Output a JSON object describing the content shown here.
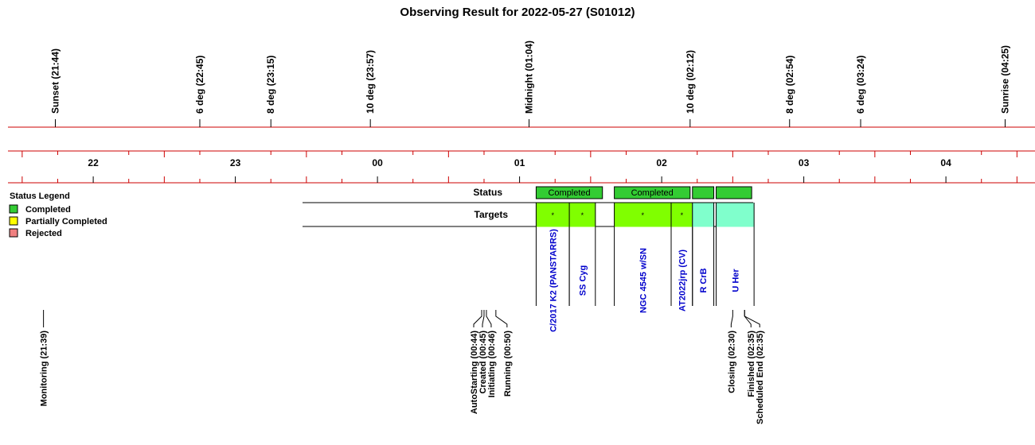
{
  "page_title": "Observing Result for 2022-05-27 (S01012)",
  "colors": {
    "axis_red": "#cc0000",
    "completed": "#33cc33",
    "partially_completed": "#ffff00",
    "rejected": "#f08080",
    "target_completed": "#80ff00",
    "target_other": "#80ffcc",
    "target_text": "#0000cc"
  },
  "chart_data": {
    "type": "timeline",
    "time_range": [
      "21:24",
      "04:43"
    ],
    "hour_ticks": [
      "22",
      "23",
      "00",
      "01",
      "02",
      "03",
      "04"
    ],
    "sky_events": [
      {
        "label": "Sunset (21:44)",
        "time": "21:44"
      },
      {
        "label": "6 deg (22:45)",
        "time": "22:45"
      },
      {
        "label": "8 deg (23:15)",
        "time": "23:15"
      },
      {
        "label": "10 deg (23:57)",
        "time": "23:57"
      },
      {
        "label": "Midnight (01:04)",
        "time": "01:04"
      },
      {
        "label": "10 deg (02:12)",
        "time": "02:12"
      },
      {
        "label": "8 deg (02:54)",
        "time": "02:54"
      },
      {
        "label": "6 deg (03:24)",
        "time": "03:24"
      },
      {
        "label": "Sunrise (04:25)",
        "time": "04:25"
      }
    ],
    "legend": {
      "title": "Status Legend",
      "items": [
        {
          "label": "Completed",
          "color": "#33cc33"
        },
        {
          "label": "Partially Completed",
          "color": "#ffff00"
        },
        {
          "label": "Rejected",
          "color": "#f08080"
        }
      ]
    },
    "rows": {
      "status": "Status",
      "targets": "Targets"
    },
    "status_blocks": [
      {
        "label": "Completed",
        "start": "01:07",
        "end": "01:35",
        "state": "completed"
      },
      {
        "label": "Completed",
        "start": "01:40",
        "end": "02:12",
        "state": "completed"
      },
      {
        "label": "",
        "start": "02:13",
        "end": "02:22",
        "state": "completed"
      },
      {
        "label": "",
        "start": "02:23",
        "end": "02:38",
        "state": "completed"
      }
    ],
    "targets": [
      {
        "label": "C/2017 K2 (PANSTARRS)",
        "start": "01:07",
        "end": "01:21",
        "state": "completed",
        "marker": "*"
      },
      {
        "label": "SS Cyg",
        "start": "01:21",
        "end": "01:32",
        "state": "completed",
        "marker": "*"
      },
      {
        "label": "NGC 4545 w/SN",
        "start": "01:40",
        "end": "02:04",
        "state": "completed",
        "marker": "*"
      },
      {
        "label": "AT2022jrp (CV)",
        "start": "02:04",
        "end": "02:13",
        "state": "completed",
        "marker": "*"
      },
      {
        "label": "R CrB",
        "start": "02:13",
        "end": "02:22",
        "state": "other",
        "marker": ""
      },
      {
        "label": "U Her",
        "start": "02:23",
        "end": "02:39",
        "state": "other",
        "marker": ""
      }
    ],
    "milestones": [
      {
        "label": "Monitoring (21:39)",
        "time": "21:39"
      },
      {
        "label": "AutoStarting (00:44)",
        "time": "00:44"
      },
      {
        "label": "Created (00:45)",
        "time": "00:45"
      },
      {
        "label": "Initiating (00:46)",
        "time": "00:46"
      },
      {
        "label": "Running (00:50)",
        "time": "00:50"
      },
      {
        "label": "Closing (02:30)",
        "time": "02:30"
      },
      {
        "label": "Finished (02:35)",
        "time": "02:35"
      },
      {
        "label": "Scheduled End (02:35)",
        "time": "02:35"
      }
    ]
  }
}
